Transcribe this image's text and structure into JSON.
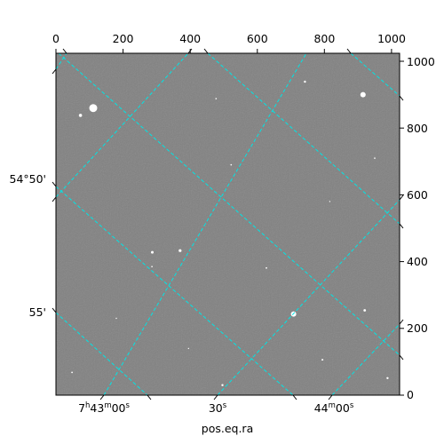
{
  "chart_data": {
    "type": "image",
    "colors": {
      "background": "#808080",
      "grid": "#00e5e5",
      "frame": "#000000",
      "star": "#ffffff"
    },
    "pixel_axes": {
      "x_range": [
        0,
        1024
      ],
      "y_range": [
        0,
        1024
      ],
      "x_ticks": [
        0,
        200,
        400,
        600,
        800,
        1000
      ],
      "y_ticks": [
        0,
        200,
        400,
        600,
        800,
        1000
      ],
      "x_tick_labels": [
        "0",
        "200",
        "400",
        "600",
        "800",
        "1000"
      ],
      "y_tick_labels": [
        "0",
        "200",
        "400",
        "600",
        "800",
        "1000"
      ]
    },
    "world_axes": {
      "xlabel": "pos.eq.ra",
      "ra_ticks": [
        {
          "h": "7",
          "m": "43",
          "s": "00"
        },
        {
          "h": "",
          "m": "",
          "s": "30"
        },
        {
          "h": "",
          "m": "44",
          "s": "00"
        }
      ],
      "dec_ticks": [
        "54°50'",
        "55'"
      ]
    },
    "grid": "on",
    "stars": [
      {
        "x": 111,
        "y": 860,
        "r": 4.5
      },
      {
        "x": 915,
        "y": 900,
        "r": 3.0
      },
      {
        "x": 708,
        "y": 243,
        "r": 3.0
      },
      {
        "x": 73,
        "y": 838,
        "r": 1.8
      },
      {
        "x": 742,
        "y": 939,
        "r": 1.2
      },
      {
        "x": 370,
        "y": 433,
        "r": 1.6
      },
      {
        "x": 287,
        "y": 428,
        "r": 1.5
      },
      {
        "x": 920,
        "y": 254,
        "r": 1.4
      },
      {
        "x": 988,
        "y": 51,
        "r": 1.2
      },
      {
        "x": 496,
        "y": 30,
        "r": 1.2
      },
      {
        "x": 794,
        "y": 106,
        "r": 1.0
      },
      {
        "x": 627,
        "y": 381,
        "r": 0.9
      },
      {
        "x": 48,
        "y": 68,
        "r": 0.9
      },
      {
        "x": 522,
        "y": 690,
        "r": 0.8
      },
      {
        "x": 286,
        "y": 385,
        "r": 0.8
      },
      {
        "x": 477,
        "y": 888,
        "r": 0.8
      },
      {
        "x": 950,
        "y": 710,
        "r": 0.8
      },
      {
        "x": 180,
        "y": 230,
        "r": 0.7
      },
      {
        "x": 816,
        "y": 580,
        "r": 0.7
      },
      {
        "x": 395,
        "y": 140,
        "r": 0.7
      }
    ]
  }
}
